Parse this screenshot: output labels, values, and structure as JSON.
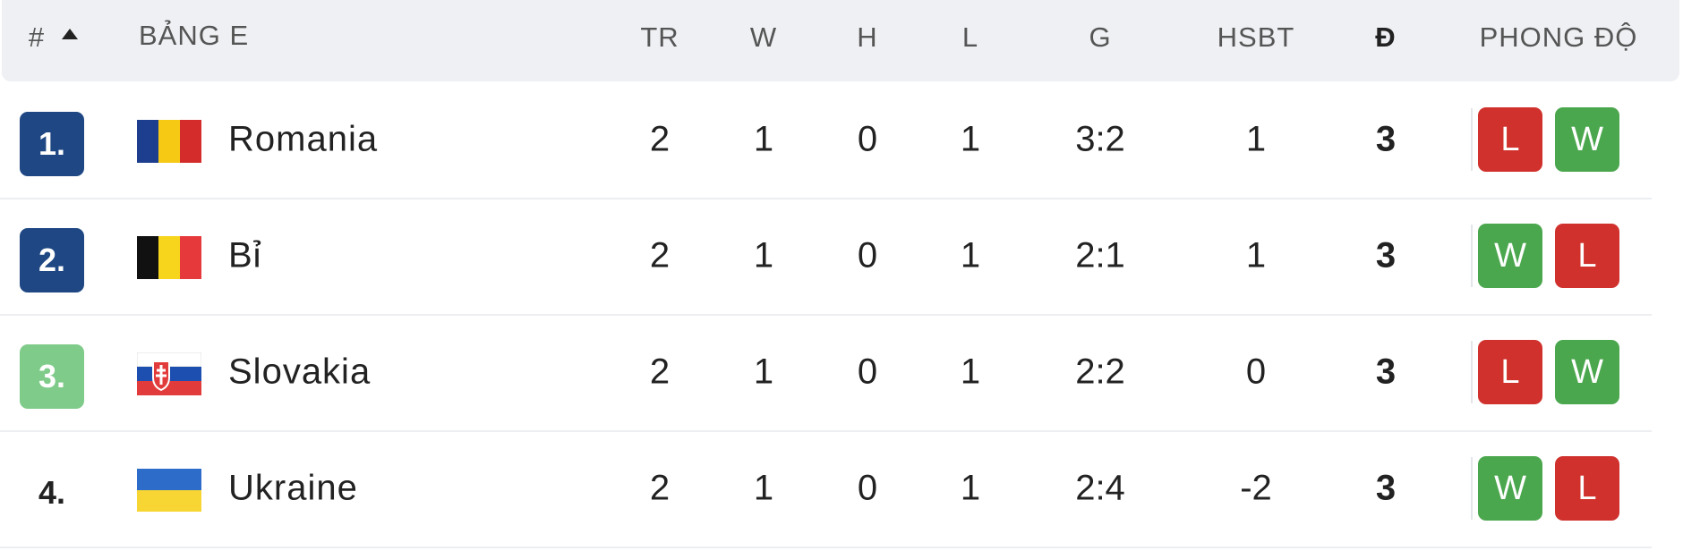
{
  "header": {
    "rank": "#",
    "group": "BẢNG E",
    "columns": [
      "TR",
      "W",
      "H",
      "L",
      "G",
      "HSBT",
      "Đ",
      "PHONG ĐỘ"
    ]
  },
  "table": {
    "rows": [
      {
        "rank": "1.",
        "team": "Romania",
        "cells": [
          2,
          1,
          0,
          1,
          "3:2",
          1,
          3
        ],
        "form": [
          "L",
          "W"
        ]
      },
      {
        "rank": "2.",
        "team": "Bỉ",
        "cells": [
          2,
          1,
          0,
          1,
          "2:1",
          1,
          3
        ],
        "form": [
          "W",
          "L"
        ]
      },
      {
        "rank": "3.",
        "team": "Slovakia",
        "cells": [
          2,
          1,
          0,
          1,
          "2:2",
          0,
          3
        ],
        "form": [
          "L",
          "W"
        ]
      },
      {
        "rank": "4.",
        "team": "Ukraine",
        "cells": [
          2,
          1,
          0,
          1,
          "2:4",
          -2,
          3
        ],
        "form": [
          "W",
          "L"
        ]
      }
    ]
  }
}
